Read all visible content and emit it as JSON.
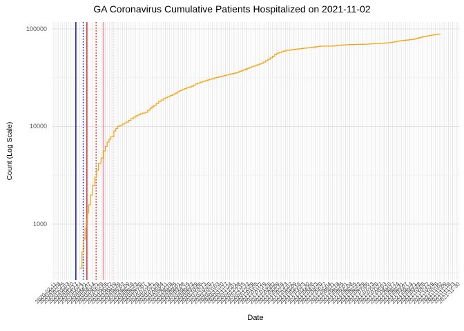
{
  "chart": {
    "title": "GA Coronavirus Cumulative Patients Hospitalized on 2021-11-02",
    "x_axis": {
      "title": "Date"
    },
    "y_axis": {
      "title": "Count (Log Scale)"
    }
  },
  "colors": {
    "line": "#F7A414",
    "grid_major": "#E2E2E2",
    "grid_minor": "#F0F0F0",
    "tick_text": "#4D4D4D",
    "vline_blue": "#2020CC",
    "vline_red": "#E02020",
    "vline_pink_solid": "#F6ABBA",
    "vline_pink_dotted": "#FACBD4"
  },
  "chart_data": {
    "type": "line",
    "title": "GA Coronavirus Cumulative Patients Hospitalized on 2021-11-02",
    "xlabel": "Date",
    "ylabel": "Count (Log Scale)",
    "y_scale": "log10",
    "ylim": [
      270,
      117000
    ],
    "x_range": [
      "2020-03-24",
      "2021-11-02"
    ],
    "grid": true,
    "legend": false,
    "y_major_ticks": [
      100000,
      10000,
      1000
    ],
    "y_tick_labels": [
      "100000",
      "10000",
      "1000"
    ],
    "y_minor_gridlines": [
      31623,
      3162,
      316
    ],
    "series": [
      {
        "name": "Cumulative Patients Hospitalized",
        "color": "#F7A414",
        "style": "step",
        "points": [
          [
            "2020-03-24",
            353
          ],
          [
            "2020-03-28",
            520
          ],
          [
            "2020-03-31",
            700
          ],
          [
            "2020-04-02",
            900
          ],
          [
            "2020-04-04",
            1121
          ],
          [
            "2020-04-06",
            1298
          ],
          [
            "2020-04-08",
            1578
          ],
          [
            "2020-04-11",
            1981
          ],
          [
            "2020-04-14",
            2489
          ],
          [
            "2020-04-18",
            3027
          ],
          [
            "2020-04-21",
            3557
          ],
          [
            "2020-04-24",
            4188
          ],
          [
            "2020-04-28",
            4764
          ],
          [
            "2020-05-02",
            5610
          ],
          [
            "2020-05-08",
            6934
          ],
          [
            "2020-05-14",
            7889
          ],
          [
            "2020-05-19",
            8995
          ],
          [
            "2020-05-25",
            10069
          ],
          [
            "2020-06-02",
            10593
          ],
          [
            "2020-06-08",
            11117
          ],
          [
            "2020-06-16",
            12050
          ],
          [
            "2020-06-24",
            12882
          ],
          [
            "2020-07-01",
            13514
          ],
          [
            "2020-07-09",
            13964
          ],
          [
            "2020-07-17",
            15399
          ],
          [
            "2020-07-23",
            16444
          ],
          [
            "2020-07-31",
            18113
          ],
          [
            "2020-08-08",
            19320
          ],
          [
            "2020-08-15",
            20277
          ],
          [
            "2020-08-23",
            21330
          ],
          [
            "2020-08-31",
            22747
          ],
          [
            "2020-09-07",
            23878
          ],
          [
            "2020-09-15",
            25061
          ],
          [
            "2020-09-23",
            25880
          ],
          [
            "2020-09-29",
            27227
          ],
          [
            "2020-10-07",
            28576
          ],
          [
            "2020-10-15",
            29512
          ],
          [
            "2020-10-22",
            30479
          ],
          [
            "2020-10-30",
            31477
          ],
          [
            "2020-11-18",
            33651
          ],
          [
            "2020-12-06",
            35892
          ],
          [
            "2020-12-26",
            40179
          ],
          [
            "2021-01-14",
            44361
          ],
          [
            "2021-01-29",
            50466
          ],
          [
            "2021-02-09",
            56624
          ],
          [
            "2021-02-24",
            60395
          ],
          [
            "2021-03-15",
            62373
          ],
          [
            "2021-04-03",
            64418
          ],
          [
            "2021-04-21",
            66527
          ],
          [
            "2021-05-10",
            66900
          ],
          [
            "2021-05-29",
            68707
          ],
          [
            "2021-06-16",
            69343
          ],
          [
            "2021-07-05",
            69823
          ],
          [
            "2021-07-24",
            71121
          ],
          [
            "2021-08-11",
            72277
          ],
          [
            "2021-08-30",
            75858
          ],
          [
            "2021-09-19",
            78343
          ],
          [
            "2021-10-06",
            83560
          ],
          [
            "2021-10-26",
            87902
          ],
          [
            "2021-11-02",
            89330
          ]
        ]
      }
    ],
    "vlines": [
      {
        "name": "vline-blue-solid",
        "color": "#2020CC",
        "style": "solid",
        "width": 1.6,
        "approx_date": "2020-03-18"
      },
      {
        "name": "vline-blue-dotted",
        "color": "#2020CC",
        "style": "dotted",
        "width": 1.4,
        "approx_date": "2020-03-30"
      },
      {
        "name": "vline-red-solid",
        "color": "#E02020",
        "style": "solid",
        "width": 1.4,
        "approx_date": "2020-04-05"
      },
      {
        "name": "vline-red-dotted",
        "color": "#E02020",
        "style": "dotted",
        "width": 1.4,
        "approx_date": "2020-04-20"
      },
      {
        "name": "vline-pink-solid",
        "color": "#F6ABBA",
        "style": "solid",
        "width": 2.2,
        "approx_date": "2020-05-02"
      },
      {
        "name": "vline-pink-dotted",
        "color": "#FACBD4",
        "style": "dotted",
        "width": 1.4,
        "approx_date": "2020-05-17"
      }
    ],
    "x_tick_labels": [
      "2020-02-11",
      "2020-02-18",
      "2020-02-25",
      "2020-03-03",
      "2020-03-10",
      "2020-03-17",
      "2020-03-24",
      "2020-03-31",
      "2020-04-07",
      "2020-04-14",
      "2020-04-21",
      "2020-04-28",
      "2020-05-05",
      "2020-05-12",
      "2020-05-19",
      "2020-05-26",
      "2020-06-02",
      "2020-06-09",
      "2020-06-16",
      "2020-06-23",
      "2020-06-30",
      "2020-07-07",
      "2020-07-14",
      "2020-07-21",
      "2020-07-28",
      "2020-08-04",
      "2020-08-11",
      "2020-08-18",
      "2020-08-25",
      "2020-09-01",
      "2020-09-08",
      "2020-09-15",
      "2020-09-22",
      "2020-09-29",
      "2020-10-06",
      "2020-10-13",
      "2020-10-20",
      "2020-10-27",
      "2020-11-03",
      "2020-11-10",
      "2020-11-17",
      "2020-11-24",
      "2020-12-01",
      "2020-12-08",
      "2020-12-15",
      "2020-12-22",
      "2020-12-29",
      "2021-01-05",
      "2021-01-12",
      "2021-01-19",
      "2021-01-26",
      "2021-02-02",
      "2021-02-09",
      "2021-02-16",
      "2021-02-23",
      "2021-03-02",
      "2021-03-09",
      "2021-03-16",
      "2021-03-23",
      "2021-03-30",
      "2021-04-06",
      "2021-04-13",
      "2021-04-20",
      "2021-04-27",
      "2021-05-04",
      "2021-05-11",
      "2021-05-18",
      "2021-05-25",
      "2021-06-01",
      "2021-06-08",
      "2021-06-15",
      "2021-06-22",
      "2021-06-29",
      "2021-07-06",
      "2021-07-13",
      "2021-07-20",
      "2021-07-27",
      "2021-08-03",
      "2021-08-10",
      "2021-08-17",
      "2021-08-24",
      "2021-08-31",
      "2021-09-07",
      "2021-09-14",
      "2021-09-21",
      "2021-09-28",
      "2021-10-05",
      "2021-10-12",
      "2021-10-19",
      "2021-10-26",
      "2021-11-02",
      "2021-11-09",
      "2021-11-16",
      "2021-11-23",
      "2021-11-30"
    ]
  }
}
